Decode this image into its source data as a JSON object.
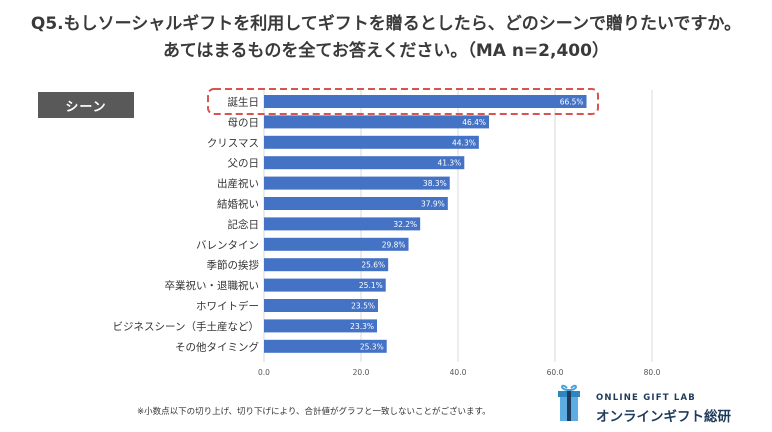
{
  "title_line1": "Q5.もしソーシャルギフトを利用してギフトを贈るとしたら、どのシーンで贈りたいですか。",
  "title_line2": "あてはまるものを全てお答えください。（MA n=2,400）",
  "scene_label": "シーン",
  "footnote": "※小数点以下の切り上げ、切り下げにより、合計値がグラフと一致しないことがございます。",
  "logo": {
    "line1": "ONLINE GIFT LAB",
    "line2": "オンラインギフト総研",
    "icon": "gift-box-icon"
  },
  "colors": {
    "bar": "#4472c4",
    "highlight": "#d9534f",
    "tag_bg": "#595959",
    "grid": "#d9d9d9"
  },
  "chart_data": {
    "type": "bar",
    "orientation": "horizontal",
    "title": "Q5.もしソーシャルギフトを利用してギフトを贈るとしたら、どのシーンで贈りたいですか。あてはまるものを全てお答えください。（MA n=2,400）",
    "categories": [
      "誕生日",
      "母の日",
      "クリスマス",
      "父の日",
      "出産祝い",
      "結婚祝い",
      "記念日",
      "バレンタイン",
      "季節の挨拶",
      "卒業祝い・退職祝い",
      "ホワイトデー",
      "ビジネスシーン（手土産など）",
      "その他タイミング"
    ],
    "values": [
      66.5,
      46.4,
      44.3,
      41.3,
      38.3,
      37.9,
      32.2,
      29.8,
      25.6,
      25.1,
      23.5,
      23.3,
      25.3
    ],
    "value_labels": [
      "66.5%",
      "46.4%",
      "44.3%",
      "41.3%",
      "38.3%",
      "37.9%",
      "32.2%",
      "29.8%",
      "25.6%",
      "25.1%",
      "23.5%",
      "23.3%",
      "25.3%"
    ],
    "xlim": [
      0,
      80
    ],
    "xticks": [
      0,
      20,
      40,
      60,
      80
    ],
    "xtick_labels": [
      "0.0",
      "20.0",
      "40.0",
      "60.0",
      "80.0"
    ],
    "highlighted_category": "誕生日",
    "grid": true
  }
}
